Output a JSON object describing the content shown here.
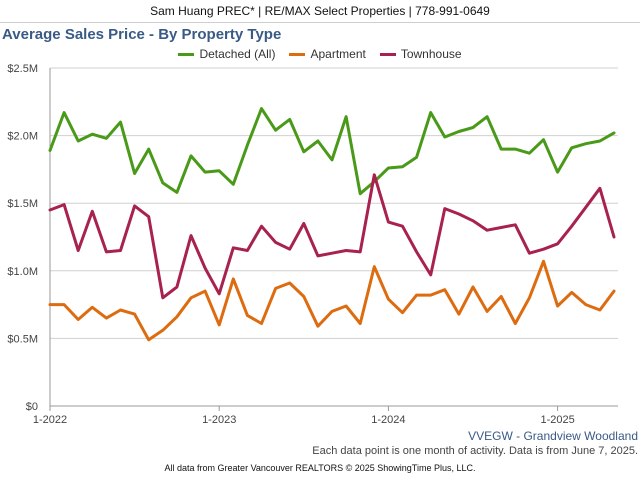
{
  "header": {
    "text": "Sam Huang PREC* | RE/MAX Select Properties | 778-991-0649"
  },
  "chart_data": {
    "type": "line",
    "title": "Average Sales Price - By Property Type",
    "xlabel": "",
    "ylabel": "",
    "ylim": [
      0,
      2500000
    ],
    "y_ticks": [
      0,
      500000,
      1000000,
      1500000,
      2000000,
      2500000
    ],
    "y_tick_labels": [
      "$0",
      "$0.5M",
      "$1.0M",
      "$1.5M",
      "$2.0M",
      "$2.5M"
    ],
    "x_tick_labels": [
      "1-2022",
      "1-2023",
      "1-2024",
      "1-2025"
    ],
    "x_tick_months": [
      0,
      12,
      24,
      36
    ],
    "months": 41,
    "grid": "horizontal",
    "legend_position": "top-center",
    "series": [
      {
        "name": "Detached (All)",
        "color": "#4a9a1a",
        "values": [
          1890000,
          2170000,
          1960000,
          2010000,
          1980000,
          2100000,
          1720000,
          1900000,
          1650000,
          1580000,
          1850000,
          1730000,
          1740000,
          1640000,
          1930000,
          2200000,
          2040000,
          2120000,
          1880000,
          1960000,
          1820000,
          2140000,
          1570000,
          1660000,
          1760000,
          1770000,
          1840000,
          2170000,
          1990000,
          2030000,
          2060000,
          2140000,
          1900000,
          1900000,
          1870000,
          1970000,
          1730000,
          1910000,
          1940000,
          1960000,
          2020000
        ]
      },
      {
        "name": "Apartment",
        "color": "#dd6b10",
        "values": [
          750000,
          750000,
          640000,
          730000,
          650000,
          710000,
          680000,
          490000,
          560000,
          660000,
          800000,
          850000,
          600000,
          940000,
          670000,
          610000,
          870000,
          910000,
          810000,
          590000,
          700000,
          740000,
          610000,
          1030000,
          790000,
          690000,
          820000,
          820000,
          860000,
          680000,
          880000,
          700000,
          810000,
          610000,
          800000,
          1070000,
          740000,
          840000,
          750000,
          710000,
          850000
        ]
      },
      {
        "name": "Townhouse",
        "color": "#a8224e",
        "values": [
          1450000,
          1490000,
          1150000,
          1440000,
          1140000,
          1150000,
          1480000,
          1400000,
          800000,
          880000,
          1260000,
          1020000,
          830000,
          1170000,
          1150000,
          1330000,
          1210000,
          1160000,
          1350000,
          1110000,
          1130000,
          1150000,
          1140000,
          1710000,
          1360000,
          1330000,
          1140000,
          970000,
          1460000,
          1420000,
          1370000,
          1300000,
          1320000,
          1340000,
          1130000,
          1160000,
          1200000,
          1330000,
          1470000,
          1610000,
          1250000
        ]
      }
    ]
  },
  "area_label": "VVEGW - Grandview Woodland",
  "note": "Each data point is one month of activity. Data is from June 7, 2025.",
  "footer": "All data from Greater Vancouver REALTORS © 2025 ShowingTime Plus, LLC."
}
